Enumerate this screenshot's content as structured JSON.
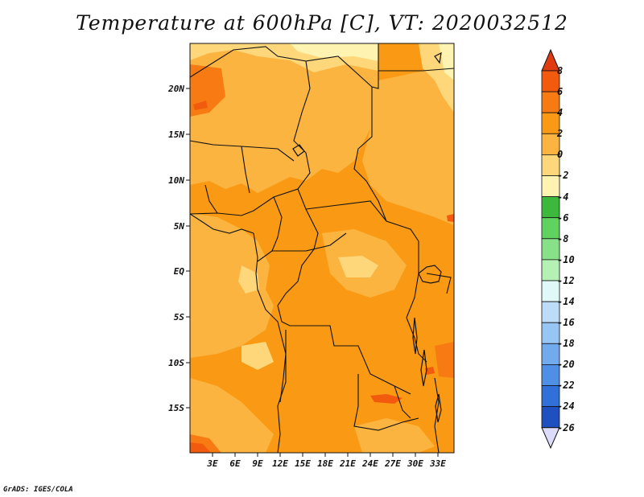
{
  "title": "Temperature at 600hPa [C], VT: 2020032512",
  "credit": "GrADS: IGES/COLA",
  "lat_labels": [
    "20N",
    "15N",
    "10N",
    "5N",
    "EQ",
    "5S",
    "10S",
    "15S"
  ],
  "lon_labels": [
    "3E",
    "6E",
    "9E",
    "12E",
    "15E",
    "18E",
    "21E",
    "24E",
    "27E",
    "30E",
    "33E"
  ],
  "colorbar": {
    "labels": [
      "8",
      "6",
      "4",
      "2",
      "0",
      "-2",
      "-4",
      "-6",
      "-8",
      "-10",
      "-12",
      "-14",
      "-16",
      "-18",
      "-20",
      "-22",
      "-24",
      "-26"
    ],
    "colors": [
      "#e03a10",
      "#f25a0e",
      "#f77b12",
      "#fa9a14",
      "#fbb440",
      "#fdd77a",
      "#fef3b0",
      "#3cb83c",
      "#5fd25f",
      "#88e188",
      "#b5f0b5",
      "#e0f8f8",
      "#bcdcf8",
      "#98c6f4",
      "#72aaee",
      "#4f8fe6",
      "#3070d8",
      "#1f50c0",
      "#14309a"
    ],
    "top_color": "#c81e0e",
    "bottom_color": "#dcdcfa"
  },
  "map_colors": {
    "base": "#fa9a14",
    "warm": "#fbb440",
    "warmer": "#fdd77a",
    "pale": "#fef3b0",
    "hot": "#f77b12",
    "hottest": "#f25a0e"
  }
}
